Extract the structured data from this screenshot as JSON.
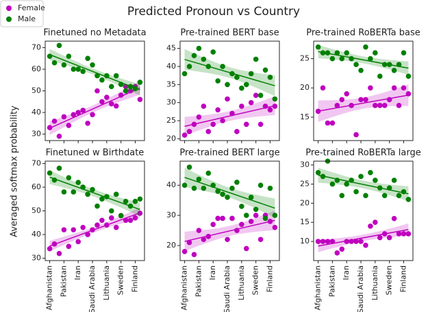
{
  "title": "Predicted Pronoun vs Country",
  "ylabel": "Averaged softmax probability",
  "series": [
    {
      "name": "Female",
      "color": "#bf00bf"
    },
    {
      "name": "Male",
      "color": "#008000"
    }
  ],
  "categories": [
    "Afghanistan",
    null,
    null,
    "Pakistan",
    null,
    null,
    "Iran",
    null,
    null,
    "Saudi Arabia",
    null,
    null,
    "Lithuania",
    null,
    null,
    "Sweden",
    null,
    null,
    "Finland",
    null
  ],
  "chart_data": [
    {
      "type": "scatter",
      "title": "Finetuned no Metadata",
      "ylim": [
        27,
        73
      ],
      "yticks": [
        30,
        40,
        50,
        60,
        70
      ],
      "x_tick_labels": false,
      "series": [
        {
          "values": [
            33,
            36,
            29,
            38,
            34,
            39,
            40,
            41,
            35,
            39,
            50,
            45,
            47,
            44,
            43,
            48,
            52,
            50,
            52,
            46
          ]
        },
        {
          "values": [
            66,
            63,
            71,
            62,
            66,
            60,
            60,
            59,
            65,
            62,
            57,
            55,
            57,
            52,
            57,
            53,
            50,
            52,
            51,
            54
          ]
        }
      ]
    },
    {
      "type": "scatter",
      "title": "Pre-trained BERT base",
      "ylim": [
        19.5,
        47
      ],
      "yticks": [
        20,
        25,
        30,
        35,
        40,
        45
      ],
      "x_tick_labels": false,
      "series": [
        {
          "values": [
            21,
            22,
            24,
            26,
            29,
            22,
            24,
            28,
            25,
            31,
            27,
            22,
            29,
            24,
            30,
            32,
            24,
            29,
            28,
            29
          ]
        },
        {
          "values": [
            38,
            40,
            43,
            45,
            42,
            40,
            44,
            36,
            40,
            35,
            38,
            37,
            34,
            35,
            38,
            42,
            32,
            39,
            37,
            31
          ]
        }
      ]
    },
    {
      "type": "scatter",
      "title": "Pre-trained RoBERTa base",
      "ylim": [
        11,
        28
      ],
      "yticks": [
        15,
        20,
        25
      ],
      "x_tick_labels": false,
      "series": [
        {
          "values": [
            16,
            20,
            14,
            14,
            17,
            18,
            19,
            17,
            12,
            18,
            18,
            20,
            17,
            17,
            17,
            18,
            20,
            17,
            20,
            19
          ]
        },
        {
          "values": [
            27,
            26,
            26,
            25,
            26,
            25,
            26,
            25,
            24,
            23,
            27,
            25,
            26,
            22,
            24,
            24,
            23,
            24,
            26,
            22
          ]
        }
      ]
    },
    {
      "type": "scatter",
      "title": "Finetuned w Birthdate",
      "ylim": [
        29,
        71
      ],
      "yticks": [
        30,
        40,
        50,
        60,
        70
      ],
      "x_tick_labels": true,
      "series": [
        {
          "values": [
            34,
            36,
            32,
            42,
            35,
            42,
            37,
            43,
            40,
            42,
            44,
            46,
            44,
            47,
            43,
            48,
            46,
            46,
            47,
            49
          ]
        },
        {
          "values": [
            66,
            63,
            68,
            58,
            64,
            58,
            62,
            60,
            57,
            59,
            52,
            55,
            56,
            50,
            57,
            48,
            54,
            52,
            54,
            55
          ]
        }
      ]
    },
    {
      "type": "scatter",
      "title": "Pre-trained BERT large",
      "ylim": [
        15,
        48
      ],
      "yticks": [
        20,
        30,
        40
      ],
      "x_tick_labels": true,
      "series": [
        {
          "values": [
            18,
            21,
            17,
            25,
            22,
            23,
            27,
            29,
            29,
            22,
            29,
            25,
            27,
            19,
            28,
            30,
            22,
            30,
            28,
            26
          ]
        },
        {
          "values": [
            40,
            46,
            39,
            42,
            39,
            44,
            40,
            38,
            37,
            36,
            39,
            41,
            33,
            30,
            36,
            32,
            40,
            29,
            39,
            30
          ]
        }
      ]
    },
    {
      "type": "scatter",
      "title": "Pre-trained RoBERTa large",
      "ylim": [
        5,
        31
      ],
      "yticks": [
        10,
        15,
        20,
        25,
        30
      ],
      "x_tick_labels": true,
      "series": [
        {
          "values": [
            10,
            10,
            10,
            10,
            7,
            8,
            10,
            10,
            10,
            10,
            9,
            14,
            15,
            11,
            12,
            11,
            16,
            12,
            12,
            12
          ]
        },
        {
          "values": [
            28,
            27,
            31,
            25,
            26,
            22,
            25,
            26,
            23,
            27,
            22,
            28,
            26,
            24,
            22,
            24,
            26,
            22,
            23,
            21
          ]
        }
      ]
    }
  ]
}
